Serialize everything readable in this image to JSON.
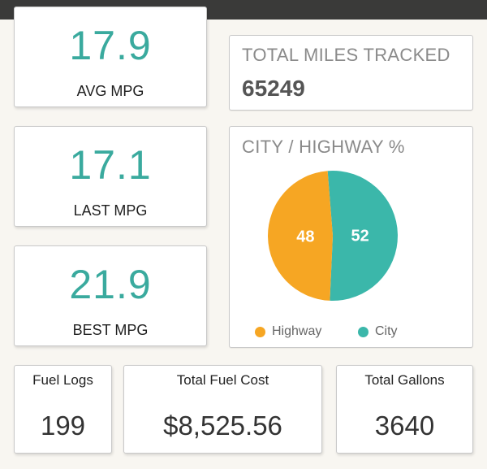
{
  "stats": {
    "avg": {
      "value": "17.9",
      "label": "AVG MPG"
    },
    "last": {
      "value": "17.1",
      "label": "LAST MPG"
    },
    "best": {
      "value": "21.9",
      "label": "BEST MPG"
    }
  },
  "total_miles": {
    "title": "TOTAL MILES TRACKED",
    "value": "65249"
  },
  "split": {
    "title": "CITY / HIGHWAY %"
  },
  "bottom": {
    "fuel_logs": {
      "title": "Fuel Logs",
      "value": "199"
    },
    "fuel_cost": {
      "title": "Total Fuel Cost",
      "value": "$8,525.56"
    },
    "gallons": {
      "title": "Total Gallons",
      "value": "3640"
    }
  },
  "colors": {
    "accent": "#3aaa9e",
    "highway": "#f6a623",
    "city": "#3bb7aa"
  },
  "chart_data": {
    "type": "pie",
    "title": "CITY / HIGHWAY %",
    "slices": [
      {
        "name": "Highway",
        "value": 48
      },
      {
        "name": "City",
        "value": 52
      }
    ],
    "legend": "bottom"
  }
}
